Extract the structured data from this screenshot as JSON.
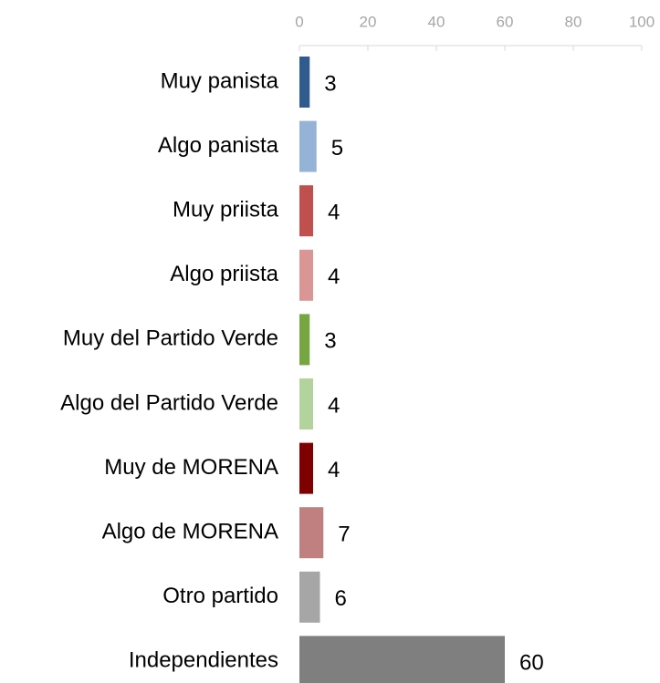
{
  "chart_data": {
    "type": "bar",
    "orientation": "horizontal",
    "categories": [
      "Muy panista",
      "Algo panista",
      "Muy priista",
      "Algo priista",
      "Muy del Partido Verde",
      "Algo del Partido Verde",
      "Muy de MORENA",
      "Algo de MORENA",
      "Otro partido",
      "Independientes"
    ],
    "values": [
      3,
      5,
      4,
      4,
      3,
      4,
      4,
      7,
      6,
      60
    ],
    "colors": [
      "#2f5b8f",
      "#95b3d7",
      "#c0504d",
      "#d99694",
      "#77a541",
      "#b3d39c",
      "#7f0000",
      "#c08080",
      "#a6a6a6",
      "#7f7f7f"
    ],
    "xlim": [
      0,
      100
    ],
    "xticks": [
      0,
      20,
      40,
      60,
      80,
      100
    ],
    "grid": false
  }
}
